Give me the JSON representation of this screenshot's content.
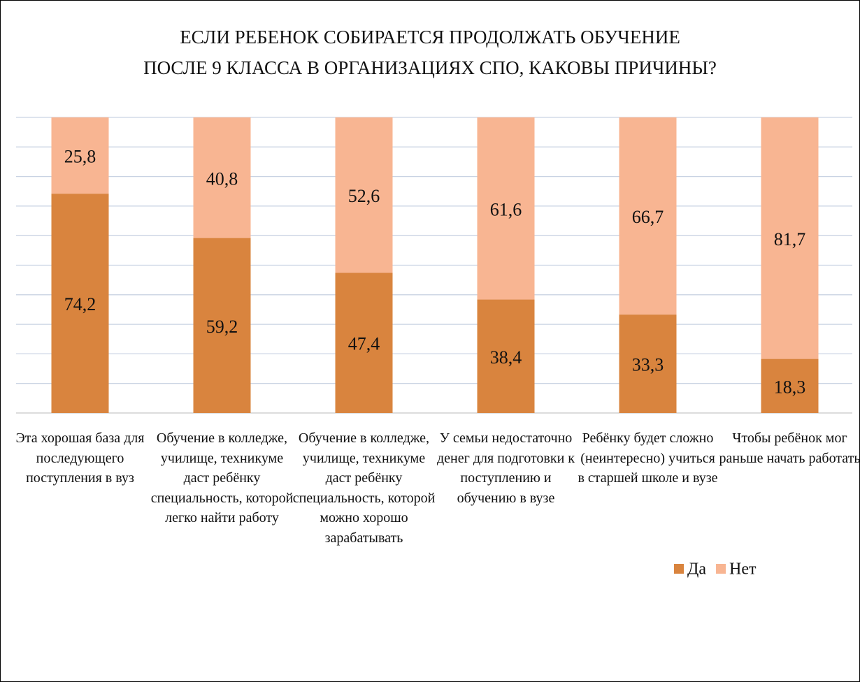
{
  "chart_data": {
    "type": "stacked_bar",
    "title": "ЕСЛИ РЕБЕНОК СОБИРАЕТСЯ ПРОДОЛЖАТЬ ОБУЧЕНИЕ\nПОСЛЕ 9 КЛАССА В ОРГАНИЗАЦИЯХ СПО, КАКОВЫ ПРИЧИНЫ?",
    "categories": [
      "Эта хорошая база для последующего поступления в вуз",
      "Обучение в колледже, училище, техникуме даст ребёнку специальность, которой легко найти работу",
      "Обучение в колледже, училище, техникуме даст ребёнку специальность, которой можно хорошо зарабатывать",
      "У семьи недостаточно денег для подготовки к поступлению и обучению в вузе",
      "Ребёнку будет сложно (неинтересно) учиться в старшей школе и вузе",
      "Чтобы ребёнок мог раньше начать работать"
    ],
    "series": [
      {
        "name": "Да",
        "color": "#d9843e",
        "values": [
          74.2,
          59.2,
          47.4,
          38.4,
          33.3,
          18.3
        ],
        "value_labels": [
          "74,2",
          "59,2",
          "47,4",
          "38,4",
          "33,3",
          "18,3"
        ]
      },
      {
        "name": "Нет",
        "color": "#f8b592",
        "values": [
          25.8,
          40.8,
          52.6,
          61.6,
          66.7,
          81.7
        ],
        "value_labels": [
          "25,8",
          "40,8",
          "52,6",
          "61,6",
          "66,7",
          "81,7"
        ]
      }
    ],
    "ylim": [
      0,
      100
    ],
    "yticks": [
      0,
      10,
      20,
      30,
      40,
      50,
      60,
      70,
      80,
      90,
      100
    ],
    "grid": true,
    "legend": "bottom-right"
  }
}
